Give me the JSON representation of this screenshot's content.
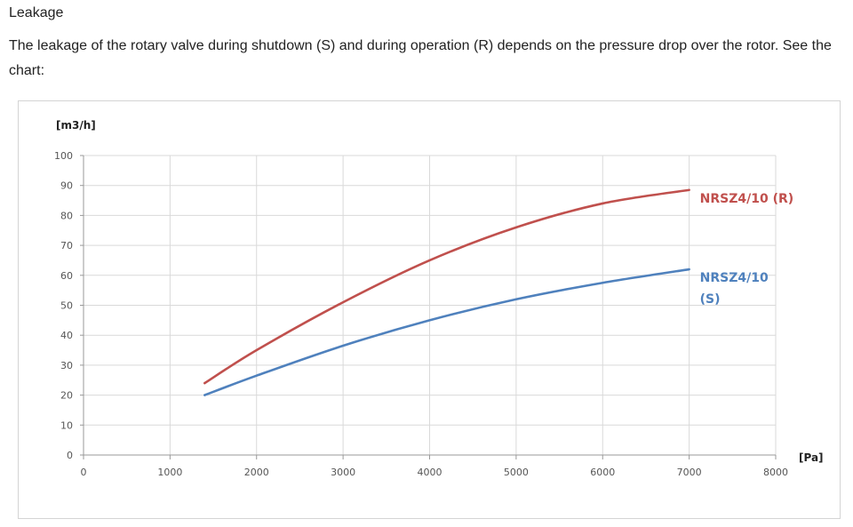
{
  "heading": "Leakage",
  "description": "The leakage of the rotary valve during shutdown (S) and during operation (R) depends on the pressure drop over the rotor. See the chart:",
  "chart_data": {
    "type": "line",
    "ylabel": "[m3/h]",
    "xlabel": "[Pa]",
    "xlim": [
      0,
      8000
    ],
    "ylim": [
      0,
      100
    ],
    "xticks": [
      "0",
      "1000",
      "2000",
      "3000",
      "4000",
      "5000",
      "6000",
      "7000",
      "8000"
    ],
    "yticks": [
      "0",
      "10",
      "20",
      "30",
      "40",
      "50",
      "60",
      "70",
      "80",
      "90",
      "100"
    ],
    "grid": true,
    "series": [
      {
        "name": "NRSZ4/10 (R)",
        "label_lines": [
          "NRSZ4/10 (R)"
        ],
        "color": "#c0504d",
        "x": [
          1400,
          2000,
          3000,
          4000,
          5000,
          6000,
          7000
        ],
        "y": [
          24,
          35,
          51,
          65,
          76,
          84,
          88.5
        ]
      },
      {
        "name": "NRSZ4/10 (S)",
        "label_lines": [
          "NRSZ4/10",
          "(S)"
        ],
        "color": "#4f81bd",
        "x": [
          1400,
          2000,
          3000,
          4000,
          5000,
          6000,
          7000
        ],
        "y": [
          20,
          26.5,
          36.5,
          45,
          52,
          57.5,
          62
        ]
      }
    ]
  }
}
